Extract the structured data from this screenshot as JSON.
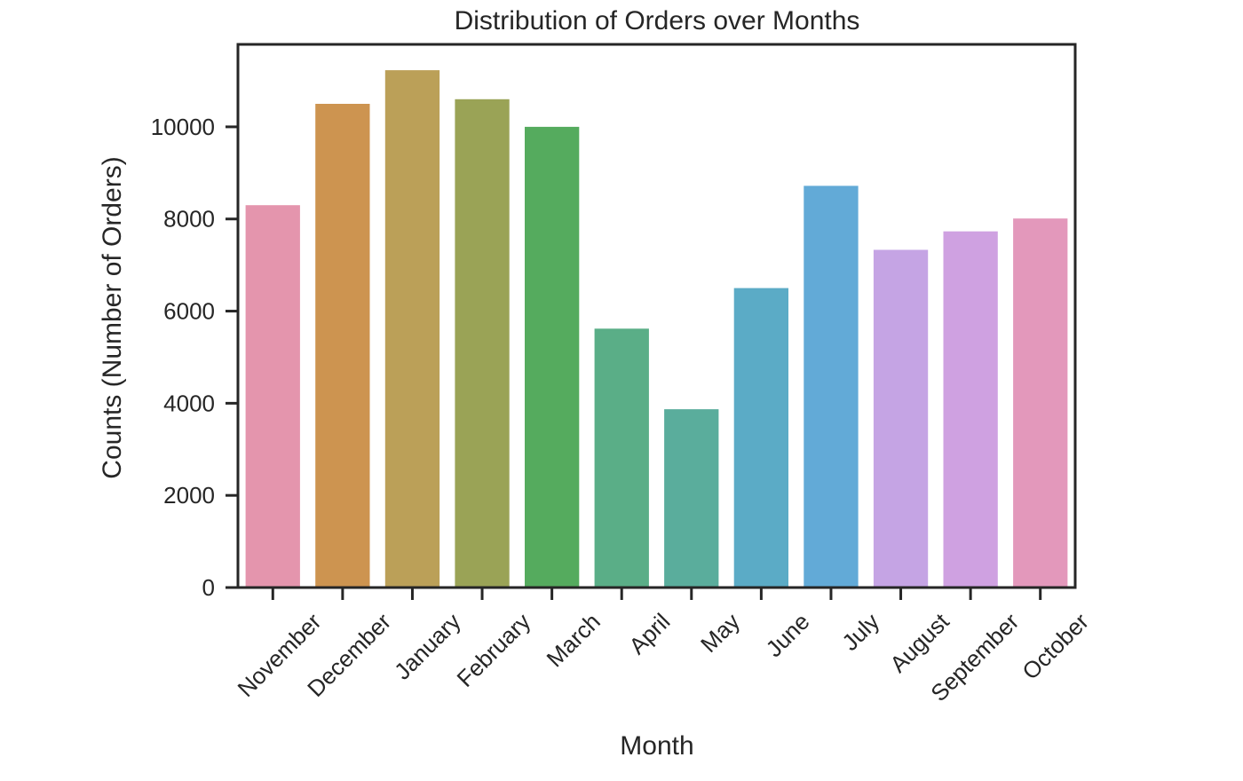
{
  "chart_data": {
    "type": "bar",
    "title": "Distribution of Orders over Months",
    "xlabel": "Month",
    "ylabel": "Counts (Number of Orders)",
    "categories": [
      "November",
      "December",
      "January",
      "February",
      "March",
      "April",
      "May",
      "June",
      "July",
      "August",
      "September",
      "October"
    ],
    "values": [
      8300,
      10500,
      11230,
      10600,
      10000,
      5620,
      3870,
      6500,
      8720,
      7330,
      7730,
      8010
    ],
    "colors": [
      "#e495ad",
      "#cd9450",
      "#bba058",
      "#9aa356",
      "#55ab5e",
      "#5aae87",
      "#5aad9c",
      "#5babc6",
      "#62aad7",
      "#c5a4e4",
      "#cfa1e1",
      "#e398bb"
    ],
    "yticks": [
      0,
      2000,
      4000,
      6000,
      8000,
      10000
    ],
    "ylim": [
      0,
      11790
    ],
    "grid": false,
    "legend": "none"
  }
}
